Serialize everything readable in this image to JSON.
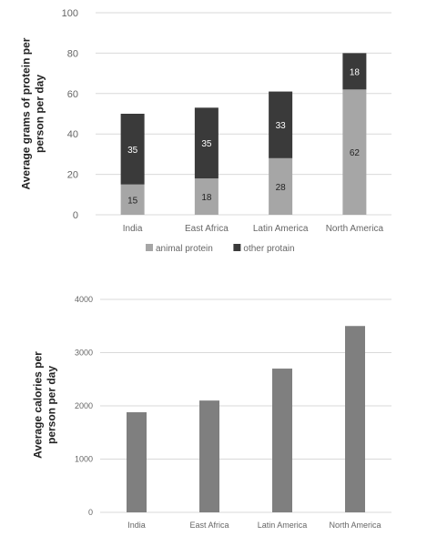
{
  "chart_data": [
    {
      "type": "bar",
      "stacked": true,
      "categories": [
        "India",
        "East Africa",
        "Latin America",
        "North America"
      ],
      "series": [
        {
          "name": "animal protein",
          "values": [
            15,
            18,
            28,
            62
          ],
          "color": "#a6a6a6"
        },
        {
          "name": "other protain",
          "values": [
            35,
            35,
            33,
            18
          ],
          "color": "#3a3a3a"
        }
      ],
      "ylabel": "Average grams of protein per person per day",
      "ylim": [
        0,
        100
      ],
      "yticks": [
        0,
        20,
        40,
        60,
        80,
        100
      ],
      "grid": true,
      "legend": "bottom"
    },
    {
      "type": "bar",
      "categories": [
        "India",
        "East Africa",
        "Latin America",
        "North America"
      ],
      "values": [
        1880,
        2100,
        2700,
        3500
      ],
      "color": "#7f7f7f",
      "ylabel": "Average calories per person per day",
      "ylim": [
        0,
        4000
      ],
      "yticks": [
        0,
        1000,
        2000,
        3000,
        4000
      ],
      "grid": true
    }
  ]
}
